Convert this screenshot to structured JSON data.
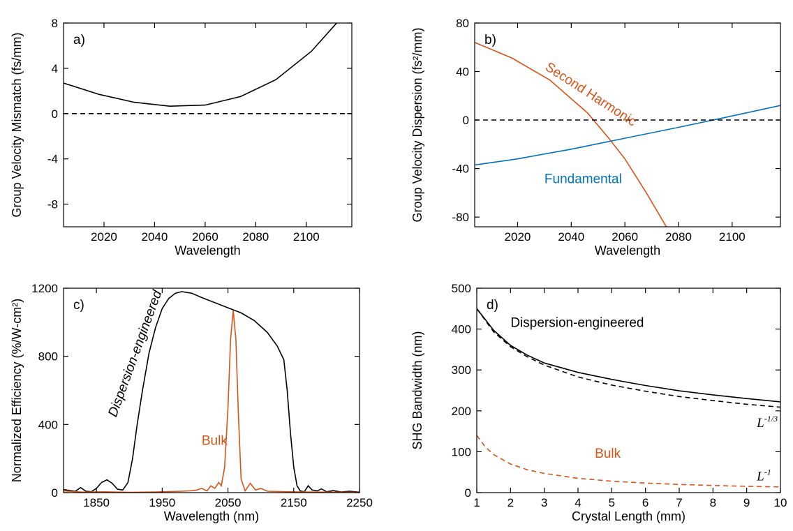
{
  "chart_data": [
    {
      "type": "line",
      "panel_label": "a)",
      "xlabel": "Wavelength",
      "ylabel": "Group Velocity Mismatch (fs/mm)",
      "xlim": [
        2004,
        2118
      ],
      "ylim": [
        -10,
        8
      ],
      "xticks": [
        2020,
        2040,
        2060,
        2080,
        2100
      ],
      "yticks": [
        -8,
        -4,
        0,
        4,
        8
      ],
      "series": [
        {
          "color": "#000000",
          "dash": "solid",
          "points": [
            [
              2004,
              2.7
            ],
            [
              2018,
              1.7
            ],
            [
              2032,
              1.0
            ],
            [
              2046,
              0.65
            ],
            [
              2060,
              0.75
            ],
            [
              2074,
              1.5
            ],
            [
              2088,
              3.0
            ],
            [
              2102,
              5.5
            ],
            [
              2118,
              9.5
            ]
          ]
        },
        {
          "color": "#000000",
          "dash": "dashed",
          "points": [
            [
              2004,
              0
            ],
            [
              2118,
              0
            ]
          ]
        }
      ],
      "annotations": []
    },
    {
      "type": "line",
      "panel_label": "b)",
      "xlabel": "Wavelength",
      "ylabel": "Group Velocity Dispersion (fs²/mm)",
      "xlim": [
        2004,
        2118
      ],
      "ylim": [
        -88,
        80
      ],
      "xticks": [
        2020,
        2040,
        2060,
        2080,
        2100
      ],
      "yticks": [
        -80,
        -40,
        0,
        40,
        80
      ],
      "series": [
        {
          "name": "Second Harmonic",
          "color": "#d95319",
          "dash": "solid",
          "points": [
            [
              2004,
              64
            ],
            [
              2018,
              51
            ],
            [
              2032,
              33
            ],
            [
              2046,
              6
            ],
            [
              2054,
              -15
            ],
            [
              2060,
              -32
            ],
            [
              2068,
              -60
            ],
            [
              2076,
              -90
            ]
          ]
        },
        {
          "name": "Fundamental",
          "color": "#0072bd",
          "dash": "solid",
          "points": [
            [
              2004,
              -37
            ],
            [
              2020,
              -32
            ],
            [
              2040,
              -24
            ],
            [
              2060,
              -15
            ],
            [
              2080,
              -6
            ],
            [
              2095,
              1
            ],
            [
              2118,
              12
            ]
          ]
        },
        {
          "color": "#000000",
          "dash": "dashed",
          "points": [
            [
              2004,
              0
            ],
            [
              2118,
              0
            ]
          ]
        }
      ],
      "annotations": [
        {
          "text": "Second Harmonic",
          "color": "#d95319",
          "x": 2030,
          "y": 42,
          "angle": 33
        },
        {
          "text": "Fundamental",
          "color": "#0072bd",
          "x": 2030,
          "y": -52,
          "angle": 0
        }
      ]
    },
    {
      "type": "line",
      "panel_label": "c)",
      "xlabel": "Wavelength (nm)",
      "ylabel": "Normalized Efficiency (%/W-cm²)",
      "xlim": [
        1800,
        2250
      ],
      "ylim": [
        0,
        1200
      ],
      "xticks": [
        1850,
        1950,
        2050,
        2150,
        2250
      ],
      "yticks": [
        0,
        400,
        800,
        1200
      ],
      "series": [
        {
          "name": "Dispersion-engineered",
          "color": "#000000",
          "dash": "solid",
          "points": [
            [
              1800,
              18
            ],
            [
              1810,
              12
            ],
            [
              1818,
              8
            ],
            [
              1826,
              30
            ],
            [
              1834,
              8
            ],
            [
              1842,
              5
            ],
            [
              1850,
              25
            ],
            [
              1858,
              60
            ],
            [
              1866,
              75
            ],
            [
              1874,
              55
            ],
            [
              1882,
              20
            ],
            [
              1890,
              15
            ],
            [
              1898,
              60
            ],
            [
              1905,
              200
            ],
            [
              1912,
              400
            ],
            [
              1920,
              600
            ],
            [
              1930,
              820
            ],
            [
              1940,
              970
            ],
            [
              1950,
              1080
            ],
            [
              1960,
              1140
            ],
            [
              1970,
              1170
            ],
            [
              1980,
              1180
            ],
            [
              1995,
              1170
            ],
            [
              2010,
              1145
            ],
            [
              2030,
              1115
            ],
            [
              2050,
              1085
            ],
            [
              2070,
              1055
            ],
            [
              2090,
              1010
            ],
            [
              2110,
              940
            ],
            [
              2125,
              860
            ],
            [
              2135,
              780
            ],
            [
              2140,
              600
            ],
            [
              2145,
              350
            ],
            [
              2150,
              150
            ],
            [
              2155,
              40
            ],
            [
              2160,
              10
            ],
            [
              2166,
              5
            ],
            [
              2172,
              40
            ],
            [
              2178,
              15
            ],
            [
              2186,
              10
            ],
            [
              2192,
              22
            ],
            [
              2200,
              5
            ],
            [
              2210,
              12
            ],
            [
              2222,
              4
            ],
            [
              2235,
              8
            ],
            [
              2250,
              3
            ]
          ]
        },
        {
          "name": "Bulk",
          "color": "#d95319",
          "dash": "solid",
          "points": [
            [
              1800,
              10
            ],
            [
              1830,
              3
            ],
            [
              1860,
              5
            ],
            [
              1900,
              2
            ],
            [
              1940,
              4
            ],
            [
              1980,
              8
            ],
            [
              2000,
              12
            ],
            [
              2010,
              25
            ],
            [
              2018,
              10
            ],
            [
              2024,
              40
            ],
            [
              2030,
              25
            ],
            [
              2036,
              60
            ],
            [
              2040,
              40
            ],
            [
              2045,
              150
            ],
            [
              2050,
              500
            ],
            [
              2054,
              900
            ],
            [
              2058,
              1070
            ],
            [
              2062,
              900
            ],
            [
              2066,
              450
            ],
            [
              2070,
              80
            ],
            [
              2076,
              10
            ],
            [
              2084,
              55
            ],
            [
              2092,
              15
            ],
            [
              2100,
              25
            ],
            [
              2110,
              8
            ],
            [
              2130,
              6
            ],
            [
              2160,
              4
            ],
            [
              2200,
              3
            ],
            [
              2250,
              2
            ]
          ]
        }
      ],
      "annotations": [
        {
          "text": "Dispersion-engineered",
          "color": "#000000",
          "x": 1880,
          "y": 440,
          "angle": -70,
          "italic": true
        },
        {
          "text": "Bulk",
          "color": "#d95319",
          "x": 2010,
          "y": 280,
          "angle": 0
        }
      ]
    },
    {
      "type": "line",
      "panel_label": "d)",
      "xlabel": "Crystal Length (mm)",
      "ylabel": "SHG Bandwidth (nm)",
      "xlim": [
        1,
        10
      ],
      "ylim": [
        0,
        500
      ],
      "xticks": [
        1,
        2,
        3,
        4,
        5,
        6,
        7,
        8,
        9,
        10
      ],
      "yticks": [
        0,
        100,
        200,
        300,
        400,
        500
      ],
      "series": [
        {
          "name": "Dispersion-engineered",
          "color": "#000000",
          "dash": "solid",
          "points": [
            [
              1,
              450
            ],
            [
              1.5,
              397
            ],
            [
              2,
              360
            ],
            [
              2.5,
              336
            ],
            [
              3,
              317
            ],
            [
              4,
              294
            ],
            [
              5,
              277
            ],
            [
              6,
              262
            ],
            [
              7,
              249
            ],
            [
              8,
              239
            ],
            [
              9,
              230
            ],
            [
              10,
              222
            ]
          ]
        },
        {
          "name": "L^-1/3 fit",
          "color": "#000000",
          "dash": "dashed",
          "points": [
            [
              1,
              450
            ],
            [
              1.5,
              393
            ],
            [
              2,
              357
            ],
            [
              2.5,
              332
            ],
            [
              3,
              312
            ],
            [
              4,
              283
            ],
            [
              5,
              263
            ],
            [
              6,
              248
            ],
            [
              7,
              235
            ],
            [
              8,
              225
            ],
            [
              9,
              216
            ],
            [
              10,
              209
            ]
          ]
        },
        {
          "name": "Bulk",
          "color": "#d95319",
          "dash": "dashed",
          "points": [
            [
              1,
              140
            ],
            [
              1.25,
              112
            ],
            [
              1.5,
              93
            ],
            [
              2,
              70
            ],
            [
              2.5,
              56
            ],
            [
              3,
              47
            ],
            [
              4,
              35
            ],
            [
              5,
              28
            ],
            [
              6,
              23.3
            ],
            [
              7,
              20
            ],
            [
              8,
              17.5
            ],
            [
              9,
              15.6
            ],
            [
              10,
              14
            ]
          ]
        }
      ],
      "annotations": [
        {
          "text": "Dispersion-engineered",
          "color": "#000000",
          "x": 2.0,
          "y": 405,
          "angle": 0
        },
        {
          "text": "Bulk",
          "color": "#d95319",
          "x": 4.5,
          "y": 85,
          "angle": 0
        },
        {
          "base": "L",
          "sup": "-1/3",
          "color": "#000000",
          "x": 9.3,
          "y": 160,
          "math": true
        },
        {
          "base": "L",
          "sup": "-1",
          "color": "#000000",
          "x": 9.3,
          "y": 30,
          "math": true
        }
      ]
    }
  ]
}
